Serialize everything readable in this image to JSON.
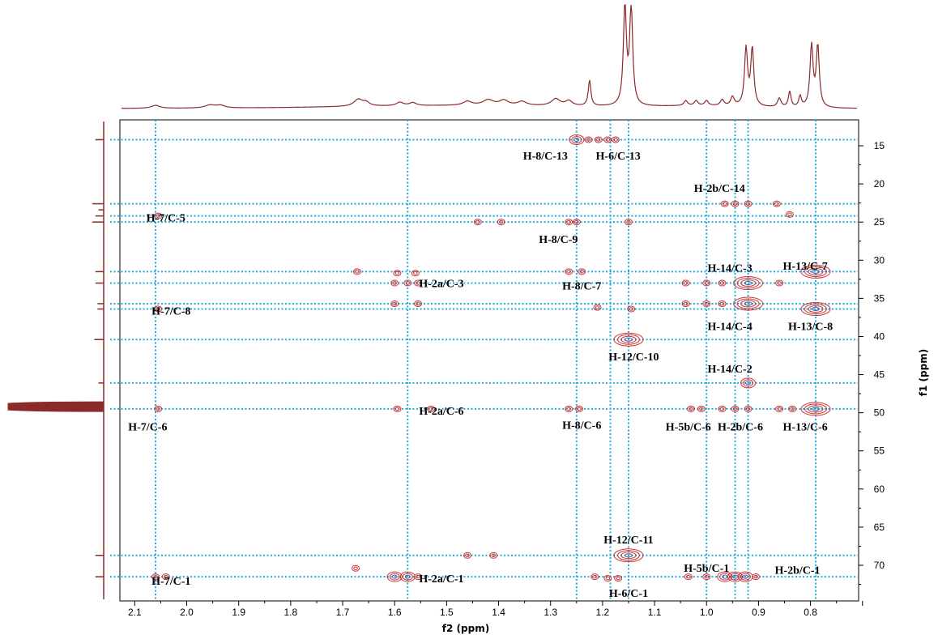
{
  "chart_data": {
    "type": "scatter",
    "title": "",
    "xlabel": "f2 (ppm)",
    "ylabel": "f1 (ppm)",
    "x_axis_reversed": true,
    "y_axis_reversed": true,
    "xlim": [
      2.15,
      0.72
    ],
    "ylim": [
      12,
      74
    ],
    "x_ticks": [
      "2.1",
      "2.0",
      "1.9",
      "1.8",
      "1.7",
      "1.6",
      "1.5",
      "1.4",
      "1.3",
      "1.2",
      "1.1",
      "1.0",
      "0.9",
      "0.8"
    ],
    "y_ticks": [
      "15",
      "20",
      "25",
      "30",
      "35",
      "40",
      "45",
      "50",
      "55",
      "60",
      "65",
      "70"
    ],
    "colors": {
      "contour": "#cc3333",
      "guide": "#22aadd",
      "spectrum": "#8b2a2a"
    },
    "guides": {
      "vertical_f2": [
        2.06,
        1.575,
        1.25,
        1.185,
        1.15,
        1.0,
        0.945,
        0.92,
        0.79
      ],
      "horizontal_f1": [
        14.2,
        22.6,
        24.2,
        25.0,
        31.5,
        33.0,
        35.7,
        36.4,
        40.4,
        46.1,
        49.5,
        68.7,
        71.5
      ]
    },
    "cross_peaks": [
      {
        "f2": 1.25,
        "f1": 14.2,
        "size": 2
      },
      {
        "f2": 1.227,
        "f1": 14.2,
        "size": 1
      },
      {
        "f2": 1.208,
        "f1": 14.2,
        "size": 1
      },
      {
        "f2": 1.19,
        "f1": 14.2,
        "size": 1
      },
      {
        "f2": 1.175,
        "f1": 14.2,
        "size": 1
      },
      {
        "f2": 0.965,
        "f1": 22.6,
        "size": 1
      },
      {
        "f2": 0.945,
        "f1": 22.6,
        "size": 1
      },
      {
        "f2": 0.92,
        "f1": 22.6,
        "size": 1
      },
      {
        "f2": 0.865,
        "f1": 22.6,
        "size": 1
      },
      {
        "f2": 0.84,
        "f1": 24.0,
        "size": 1
      },
      {
        "f2": 2.055,
        "f1": 24.2,
        "size": 1
      },
      {
        "f2": 1.44,
        "f1": 25.0,
        "size": 1
      },
      {
        "f2": 1.395,
        "f1": 25.0,
        "size": 1
      },
      {
        "f2": 1.265,
        "f1": 25.0,
        "size": 1
      },
      {
        "f2": 1.25,
        "f1": 25.0,
        "size": 1
      },
      {
        "f2": 1.15,
        "f1": 25.0,
        "size": 1
      },
      {
        "f2": 1.672,
        "f1": 31.5,
        "size": 1
      },
      {
        "f2": 1.595,
        "f1": 31.7,
        "size": 1
      },
      {
        "f2": 1.56,
        "f1": 31.7,
        "size": 1
      },
      {
        "f2": 1.265,
        "f1": 31.5,
        "size": 1
      },
      {
        "f2": 1.24,
        "f1": 31.5,
        "size": 1
      },
      {
        "f2": 0.79,
        "f1": 31.5,
        "size": 3
      },
      {
        "f2": 1.6,
        "f1": 33.0,
        "size": 1
      },
      {
        "f2": 1.575,
        "f1": 33.0,
        "size": 1
      },
      {
        "f2": 1.555,
        "f1": 33.0,
        "size": 1
      },
      {
        "f2": 1.04,
        "f1": 33.0,
        "size": 1
      },
      {
        "f2": 1.0,
        "f1": 33.0,
        "size": 1
      },
      {
        "f2": 0.97,
        "f1": 33.0,
        "size": 1
      },
      {
        "f2": 0.92,
        "f1": 33.0,
        "size": 3
      },
      {
        "f2": 0.86,
        "f1": 33.0,
        "size": 1
      },
      {
        "f2": 1.6,
        "f1": 35.7,
        "size": 1
      },
      {
        "f2": 1.555,
        "f1": 35.7,
        "size": 1
      },
      {
        "f2": 1.04,
        "f1": 35.7,
        "size": 1
      },
      {
        "f2": 1.0,
        "f1": 35.7,
        "size": 1
      },
      {
        "f2": 0.97,
        "f1": 35.7,
        "size": 1
      },
      {
        "f2": 0.92,
        "f1": 35.7,
        "size": 3
      },
      {
        "f2": 2.055,
        "f1": 36.4,
        "size": 1
      },
      {
        "f2": 1.21,
        "f1": 36.2,
        "size": 1
      },
      {
        "f2": 1.145,
        "f1": 36.4,
        "size": 1
      },
      {
        "f2": 0.79,
        "f1": 36.4,
        "size": 3
      },
      {
        "f2": 1.15,
        "f1": 40.4,
        "size": 3
      },
      {
        "f2": 0.92,
        "f1": 46.1,
        "size": 2
      },
      {
        "f2": 2.055,
        "f1": 49.5,
        "size": 1
      },
      {
        "f2": 1.595,
        "f1": 49.5,
        "size": 1
      },
      {
        "f2": 1.53,
        "f1": 49.5,
        "size": 1
      },
      {
        "f2": 1.265,
        "f1": 49.5,
        "size": 1
      },
      {
        "f2": 1.245,
        "f1": 49.5,
        "size": 1
      },
      {
        "f2": 1.03,
        "f1": 49.5,
        "size": 1
      },
      {
        "f2": 1.01,
        "f1": 49.5,
        "size": 1
      },
      {
        "f2": 0.97,
        "f1": 49.5,
        "size": 1
      },
      {
        "f2": 0.945,
        "f1": 49.5,
        "size": 1
      },
      {
        "f2": 0.92,
        "f1": 49.5,
        "size": 1
      },
      {
        "f2": 0.86,
        "f1": 49.5,
        "size": 1
      },
      {
        "f2": 0.835,
        "f1": 49.5,
        "size": 1
      },
      {
        "f2": 0.79,
        "f1": 49.5,
        "size": 3
      },
      {
        "f2": 1.46,
        "f1": 68.7,
        "size": 1
      },
      {
        "f2": 1.41,
        "f1": 68.7,
        "size": 1
      },
      {
        "f2": 1.15,
        "f1": 68.7,
        "size": 3
      },
      {
        "f2": 1.675,
        "f1": 70.4,
        "size": 1
      },
      {
        "f2": 2.06,
        "f1": 71.5,
        "size": 1
      },
      {
        "f2": 2.04,
        "f1": 71.5,
        "size": 1
      },
      {
        "f2": 1.6,
        "f1": 71.5,
        "size": 2
      },
      {
        "f2": 1.575,
        "f1": 71.5,
        "size": 2
      },
      {
        "f2": 1.555,
        "f1": 71.5,
        "size": 1
      },
      {
        "f2": 1.215,
        "f1": 71.5,
        "size": 1
      },
      {
        "f2": 1.19,
        "f1": 71.7,
        "size": 1
      },
      {
        "f2": 1.17,
        "f1": 71.7,
        "size": 1
      },
      {
        "f2": 1.035,
        "f1": 71.5,
        "size": 1
      },
      {
        "f2": 1.0,
        "f1": 71.5,
        "size": 1
      },
      {
        "f2": 0.965,
        "f1": 71.5,
        "size": 2
      },
      {
        "f2": 0.945,
        "f1": 71.5,
        "size": 2
      },
      {
        "f2": 0.925,
        "f1": 71.5,
        "size": 2
      },
      {
        "f2": 0.905,
        "f1": 71.5,
        "size": 1
      }
    ],
    "annotations": [
      {
        "text": "H-8/C-13",
        "f2": 1.31,
        "f1": 16.3
      },
      {
        "text": "H-6/C-13",
        "f2": 1.17,
        "f1": 16.3
      },
      {
        "text": "H-2b/C-14",
        "f2": 0.975,
        "f1": 20.5
      },
      {
        "text": "H-7/C-5",
        "f2": 2.04,
        "f1": 24.4
      },
      {
        "text": "H-8/C-9",
        "f2": 1.285,
        "f1": 27.2
      },
      {
        "text": "H-14/C-3",
        "f2": 0.955,
        "f1": 31.0
      },
      {
        "text": "H-13/C-7",
        "f2": 0.81,
        "f1": 30.7
      },
      {
        "text": "H-2a/C-3",
        "f2": 1.51,
        "f1": 33.0
      },
      {
        "text": "H-8/C-7",
        "f2": 1.24,
        "f1": 33.3
      },
      {
        "text": "H-7/C-8",
        "f2": 2.03,
        "f1": 36.6
      },
      {
        "text": "H-14/C-4",
        "f2": 0.955,
        "f1": 38.6
      },
      {
        "text": "H-13/C-8",
        "f2": 0.8,
        "f1": 38.6
      },
      {
        "text": "H-12/C-10",
        "f2": 1.14,
        "f1": 42.6
      },
      {
        "text": "H-14/C-2",
        "f2": 0.955,
        "f1": 44.2
      },
      {
        "text": "H-2a/C-6",
        "f2": 1.51,
        "f1": 49.7
      },
      {
        "text": "H-7/C-6",
        "f2": 2.075,
        "f1": 51.8
      },
      {
        "text": "H-8/C-6",
        "f2": 1.24,
        "f1": 51.6
      },
      {
        "text": "H-5b/C-6",
        "f2": 1.035,
        "f1": 51.8
      },
      {
        "text": "H-2b/C-6",
        "f2": 0.935,
        "f1": 51.8
      },
      {
        "text": "H-13/C-6",
        "f2": 0.81,
        "f1": 51.8
      },
      {
        "text": "H-12/C-11",
        "f2": 1.15,
        "f1": 66.6
      },
      {
        "text": "H-5b/C-1",
        "f2": 1.0,
        "f1": 70.3
      },
      {
        "text": "H-2b/C-1",
        "f2": 0.825,
        "f1": 70.6
      },
      {
        "text": "H-7/C-1",
        "f2": 2.03,
        "f1": 72.0
      },
      {
        "text": "H-2a/C-1",
        "f2": 1.51,
        "f1": 71.7
      },
      {
        "text": "H-6/C-1",
        "f2": 1.15,
        "f1": 73.6
      }
    ],
    "spectrum_1h_peaks": [
      {
        "ppm": 2.06,
        "h": 0.03,
        "w": 0.01
      },
      {
        "ppm": 1.955,
        "h": 0.03,
        "w": 0.012
      },
      {
        "ppm": 1.935,
        "h": 0.025,
        "w": 0.01
      },
      {
        "ppm": 1.67,
        "h": 0.07,
        "w": 0.01
      },
      {
        "ppm": 1.655,
        "h": 0.035,
        "w": 0.008
      },
      {
        "ppm": 1.59,
        "h": 0.035,
        "w": 0.008
      },
      {
        "ppm": 1.565,
        "h": 0.03,
        "w": 0.008
      },
      {
        "ppm": 1.46,
        "h": 0.04,
        "w": 0.01
      },
      {
        "ppm": 1.42,
        "h": 0.055,
        "w": 0.012
      },
      {
        "ppm": 1.39,
        "h": 0.05,
        "w": 0.01
      },
      {
        "ppm": 1.355,
        "h": 0.04,
        "w": 0.01
      },
      {
        "ppm": 1.29,
        "h": 0.07,
        "w": 0.01
      },
      {
        "ppm": 1.265,
        "h": 0.05,
        "w": 0.008
      },
      {
        "ppm": 1.225,
        "h": 0.26,
        "w": 0.003
      },
      {
        "ppm": 1.157,
        "h": 1.0,
        "w": 0.0035
      },
      {
        "ppm": 1.145,
        "h": 1.0,
        "w": 0.0035
      },
      {
        "ppm": 1.04,
        "h": 0.05,
        "w": 0.004
      },
      {
        "ppm": 1.02,
        "h": 0.05,
        "w": 0.004
      },
      {
        "ppm": 1.0,
        "h": 0.05,
        "w": 0.004
      },
      {
        "ppm": 0.97,
        "h": 0.06,
        "w": 0.004
      },
      {
        "ppm": 0.95,
        "h": 0.09,
        "w": 0.004
      },
      {
        "ppm": 0.924,
        "h": 0.58,
        "w": 0.0035
      },
      {
        "ppm": 0.912,
        "h": 0.58,
        "w": 0.0035
      },
      {
        "ppm": 0.86,
        "h": 0.09,
        "w": 0.004
      },
      {
        "ppm": 0.84,
        "h": 0.16,
        "w": 0.003
      },
      {
        "ppm": 0.82,
        "h": 0.11,
        "w": 0.003
      },
      {
        "ppm": 0.798,
        "h": 0.62,
        "w": 0.0035
      },
      {
        "ppm": 0.786,
        "h": 0.62,
        "w": 0.0035
      }
    ],
    "spectrum_13c_peaks": [
      {
        "ppm": 14.2,
        "h": 0.08
      },
      {
        "ppm": 22.6,
        "h": 0.11
      },
      {
        "ppm": 23.4,
        "h": 0.05
      },
      {
        "ppm": 24.2,
        "h": 0.08
      },
      {
        "ppm": 25.0,
        "h": 0.11
      },
      {
        "ppm": 31.5,
        "h": 0.08
      },
      {
        "ppm": 33.0,
        "h": 0.08
      },
      {
        "ppm": 35.7,
        "h": 0.06
      },
      {
        "ppm": 36.4,
        "h": 0.06
      },
      {
        "ppm": 40.4,
        "h": 0.09
      },
      {
        "ppm": 46.1,
        "h": 0.05
      },
      {
        "ppm": 68.7,
        "h": 0.08
      },
      {
        "ppm": 71.5,
        "h": 0.08
      }
    ]
  }
}
